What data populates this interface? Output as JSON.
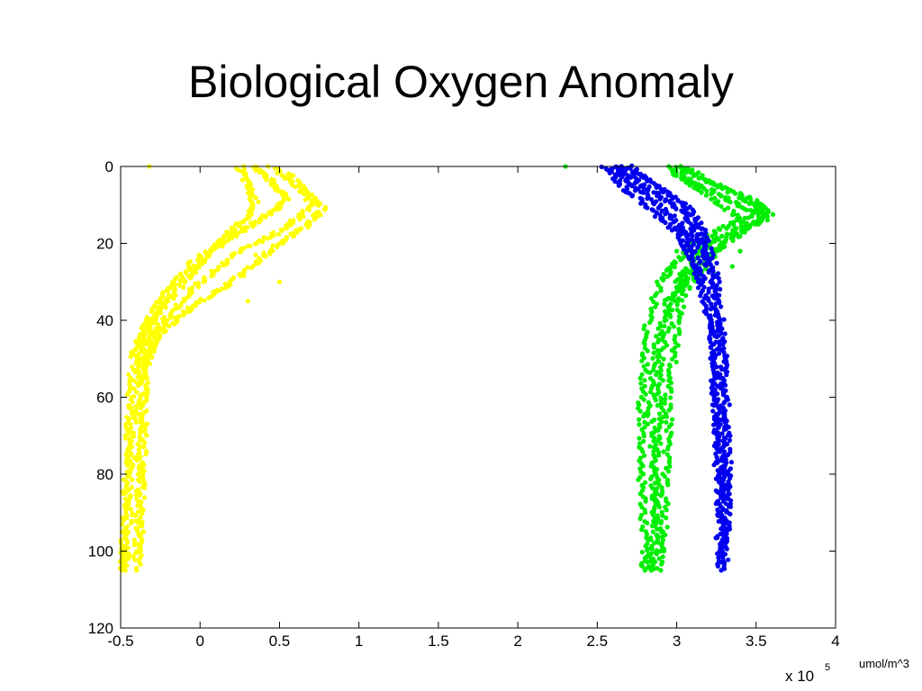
{
  "slide": {
    "title": "Biological Oxygen Anomaly",
    "unit_note": "umol/m^3"
  },
  "chart_data": {
    "type": "scatter",
    "title": "Biological Oxygen Anomaly",
    "xlabel": "",
    "ylabel": "",
    "x_multiplier_label": "x 10",
    "x_multiplier_exponent": "5",
    "xlim": [
      -0.5,
      4
    ],
    "ylim": [
      0,
      120
    ],
    "y_reversed": true,
    "grid": false,
    "x_ticks": [
      "-0.5",
      "0",
      "0.5",
      "1",
      "1.5",
      "2",
      "2.5",
      "3",
      "3.5",
      "4"
    ],
    "y_ticks": [
      "0",
      "20",
      "40",
      "60",
      "80",
      "100",
      "120"
    ],
    "series": [
      {
        "color": "#ffff00",
        "profiles": [
          [
            [
              0.35,
              0
            ],
            [
              0.45,
              4
            ],
            [
              0.55,
              8
            ],
            [
              0.45,
              12
            ],
            [
              0.3,
              16
            ],
            [
              0.15,
              20
            ],
            [
              0,
              25
            ],
            [
              -0.1,
              30
            ],
            [
              -0.2,
              35
            ],
            [
              -0.3,
              40
            ],
            [
              -0.35,
              45
            ],
            [
              -0.38,
              50
            ],
            [
              -0.4,
              60
            ],
            [
              -0.42,
              70
            ],
            [
              -0.44,
              80
            ],
            [
              -0.45,
              90
            ],
            [
              -0.46,
              100
            ],
            [
              -0.47,
              105
            ]
          ],
          [
            [
              0.45,
              0
            ],
            [
              0.6,
              5
            ],
            [
              0.72,
              10
            ],
            [
              0.6,
              14
            ],
            [
              0.45,
              18
            ],
            [
              0.25,
              22
            ],
            [
              0.1,
              27
            ],
            [
              -0.05,
              32
            ],
            [
              -0.18,
              38
            ],
            [
              -0.28,
              43
            ],
            [
              -0.33,
              48
            ],
            [
              -0.35,
              55
            ],
            [
              -0.36,
              65
            ],
            [
              -0.37,
              75
            ],
            [
              -0.38,
              85
            ],
            [
              -0.39,
              95
            ],
            [
              -0.4,
              105
            ]
          ],
          [
            [
              0.25,
              0
            ],
            [
              0.3,
              5
            ],
            [
              0.35,
              10
            ],
            [
              0.25,
              15
            ],
            [
              0.1,
              20
            ],
            [
              -0.05,
              25
            ],
            [
              -0.15,
              30
            ],
            [
              -0.25,
              35
            ],
            [
              -0.32,
              40
            ],
            [
              -0.38,
              45
            ],
            [
              -0.42,
              50
            ],
            [
              -0.44,
              60
            ],
            [
              -0.45,
              70
            ],
            [
              -0.46,
              80
            ],
            [
              -0.47,
              90
            ],
            [
              -0.48,
              100
            ],
            [
              -0.49,
              105
            ]
          ],
          [
            [
              0.55,
              2
            ],
            [
              0.65,
              6
            ],
            [
              0.78,
              11
            ],
            [
              0.65,
              16
            ],
            [
              0.5,
              20
            ],
            [
              0.35,
              25
            ],
            [
              0.2,
              30
            ],
            [
              0.05,
              34
            ],
            [
              -0.1,
              38
            ],
            [
              -0.22,
              42
            ],
            [
              -0.3,
              47
            ],
            [
              -0.34,
              52
            ],
            [
              -0.35,
              62
            ],
            [
              -0.36,
              72
            ],
            [
              -0.37,
              82
            ],
            [
              -0.38,
              92
            ],
            [
              -0.38,
              102
            ]
          ]
        ],
        "points": [
          [
            -0.32,
            0
          ],
          [
            0.2,
            18
          ],
          [
            0.35,
            23
          ],
          [
            0.5,
            30
          ],
          [
            0.3,
            35
          ]
        ]
      },
      {
        "color": "#00ee00",
        "profiles": [
          [
            [
              3.0,
              0
            ],
            [
              3.2,
              4
            ],
            [
              3.45,
              8
            ],
            [
              3.6,
              12
            ],
            [
              3.4,
              16
            ],
            [
              3.2,
              20
            ],
            [
              3.1,
              25
            ],
            [
              3.0,
              30
            ],
            [
              2.95,
              40
            ],
            [
              2.9,
              50
            ],
            [
              2.9,
              60
            ],
            [
              2.88,
              70
            ],
            [
              2.87,
              80
            ],
            [
              2.86,
              90
            ],
            [
              2.85,
              100
            ],
            [
              2.84,
              105
            ]
          ],
          [
            [
              2.95,
              0
            ],
            [
              3.1,
              4
            ],
            [
              3.3,
              8
            ],
            [
              3.5,
              12
            ],
            [
              3.3,
              16
            ],
            [
              3.1,
              20
            ],
            [
              3.0,
              25
            ],
            [
              2.9,
              30
            ],
            [
              2.82,
              40
            ],
            [
              2.8,
              50
            ],
            [
              2.78,
              60
            ],
            [
              2.78,
              70
            ],
            [
              2.78,
              80
            ],
            [
              2.79,
              90
            ],
            [
              2.8,
              100
            ],
            [
              2.8,
              105
            ]
          ],
          [
            [
              3.05,
              0
            ],
            [
              3.25,
              5
            ],
            [
              3.5,
              10
            ],
            [
              3.55,
              14
            ],
            [
              3.35,
              18
            ],
            [
              3.25,
              22
            ],
            [
              3.15,
              27
            ],
            [
              3.05,
              32
            ],
            [
              3.0,
              40
            ],
            [
              2.98,
              50
            ],
            [
              2.95,
              60
            ],
            [
              2.95,
              70
            ],
            [
              2.93,
              80
            ],
            [
              2.92,
              90
            ],
            [
              2.92,
              100
            ]
          ],
          [
            [
              3.0,
              2
            ],
            [
              3.15,
              6
            ],
            [
              3.35,
              12
            ],
            [
              3.45,
              16
            ],
            [
              3.3,
              20
            ],
            [
              3.15,
              25
            ],
            [
              3.05,
              30
            ],
            [
              2.95,
              35
            ],
            [
              2.88,
              45
            ],
            [
              2.85,
              55
            ],
            [
              2.84,
              65
            ],
            [
              2.85,
              75
            ],
            [
              2.86,
              85
            ],
            [
              2.88,
              95
            ],
            [
              2.9,
              105
            ]
          ]
        ],
        "points": [
          [
            2.3,
            0
          ],
          [
            3.4,
            22
          ],
          [
            3.35,
            26
          ],
          [
            3.25,
            28
          ],
          [
            3.05,
            21
          ],
          [
            3.0,
            22
          ]
        ]
      },
      {
        "color": "#0000ee",
        "profiles": [
          [
            [
              2.55,
              0
            ],
            [
              2.65,
              5
            ],
            [
              2.8,
              10
            ],
            [
              2.95,
              15
            ],
            [
              3.05,
              20
            ],
            [
              3.1,
              25
            ],
            [
              3.15,
              30
            ],
            [
              3.2,
              40
            ],
            [
              3.25,
              50
            ],
            [
              3.25,
              60
            ],
            [
              3.27,
              70
            ],
            [
              3.28,
              80
            ],
            [
              3.28,
              90
            ],
            [
              3.28,
              100
            ],
            [
              3.28,
              105
            ]
          ],
          [
            [
              2.65,
              0
            ],
            [
              2.75,
              4
            ],
            [
              2.9,
              8
            ],
            [
              3.05,
              12
            ],
            [
              3.12,
              18
            ],
            [
              3.18,
              23
            ],
            [
              3.22,
              28
            ],
            [
              3.25,
              35
            ],
            [
              3.28,
              45
            ],
            [
              3.3,
              55
            ],
            [
              3.3,
              65
            ],
            [
              3.3,
              75
            ],
            [
              3.31,
              85
            ],
            [
              3.31,
              95
            ],
            [
              3.3,
              103
            ]
          ],
          [
            [
              2.6,
              0
            ],
            [
              2.7,
              4
            ],
            [
              2.85,
              9
            ],
            [
              3.0,
              14
            ],
            [
              3.08,
              19
            ],
            [
              3.12,
              24
            ],
            [
              3.18,
              32
            ],
            [
              3.22,
              42
            ],
            [
              3.24,
              52
            ],
            [
              3.24,
              62
            ],
            [
              3.25,
              72
            ],
            [
              3.26,
              82
            ],
            [
              3.27,
              92
            ],
            [
              3.27,
              100
            ]
          ],
          [
            [
              2.7,
              0
            ],
            [
              2.8,
              3
            ],
            [
              2.95,
              7
            ],
            [
              3.08,
              11
            ],
            [
              3.15,
              16
            ],
            [
              3.2,
              21
            ],
            [
              3.24,
              27
            ],
            [
              3.27,
              37
            ],
            [
              3.29,
              47
            ],
            [
              3.3,
              57
            ],
            [
              3.32,
              67
            ],
            [
              3.32,
              77
            ],
            [
              3.32,
              87
            ],
            [
              3.31,
              97
            ]
          ]
        ],
        "points": []
      }
    ]
  }
}
